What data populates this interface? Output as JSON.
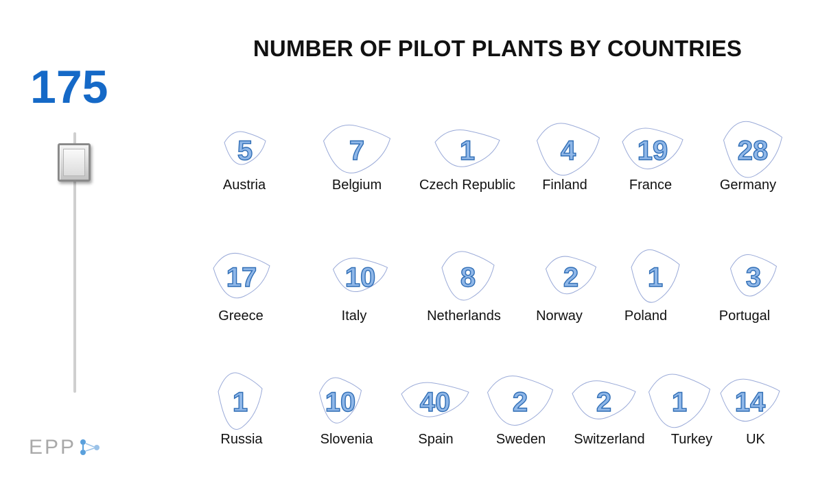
{
  "total": "175",
  "logo_text": "EPP",
  "chart_data": {
    "type": "table",
    "title": "NUMBER OF PILOT PLANTS BY COUNTRIES",
    "categories": [
      "Austria",
      "Belgium",
      "Czech Republic",
      "Finland",
      "France",
      "Germany",
      "Greece",
      "Italy",
      "Netherlands",
      "Norway",
      "Poland",
      "Portugal",
      "Russia",
      "Slovenia",
      "Spain",
      "Sweden",
      "Switzerland",
      "Turkey",
      "UK"
    ],
    "values": [
      5,
      7,
      1,
      4,
      19,
      28,
      17,
      10,
      8,
      2,
      1,
      3,
      1,
      10,
      40,
      2,
      2,
      1,
      14
    ]
  },
  "colors": {
    "accent": "#1569c7",
    "value_fill": "#8fb7e8",
    "value_stroke": "#2f6db5",
    "outline": "#9aaad8"
  },
  "icons": {
    "slider": "slider-thumb",
    "logo": "epp-logo-icon"
  }
}
